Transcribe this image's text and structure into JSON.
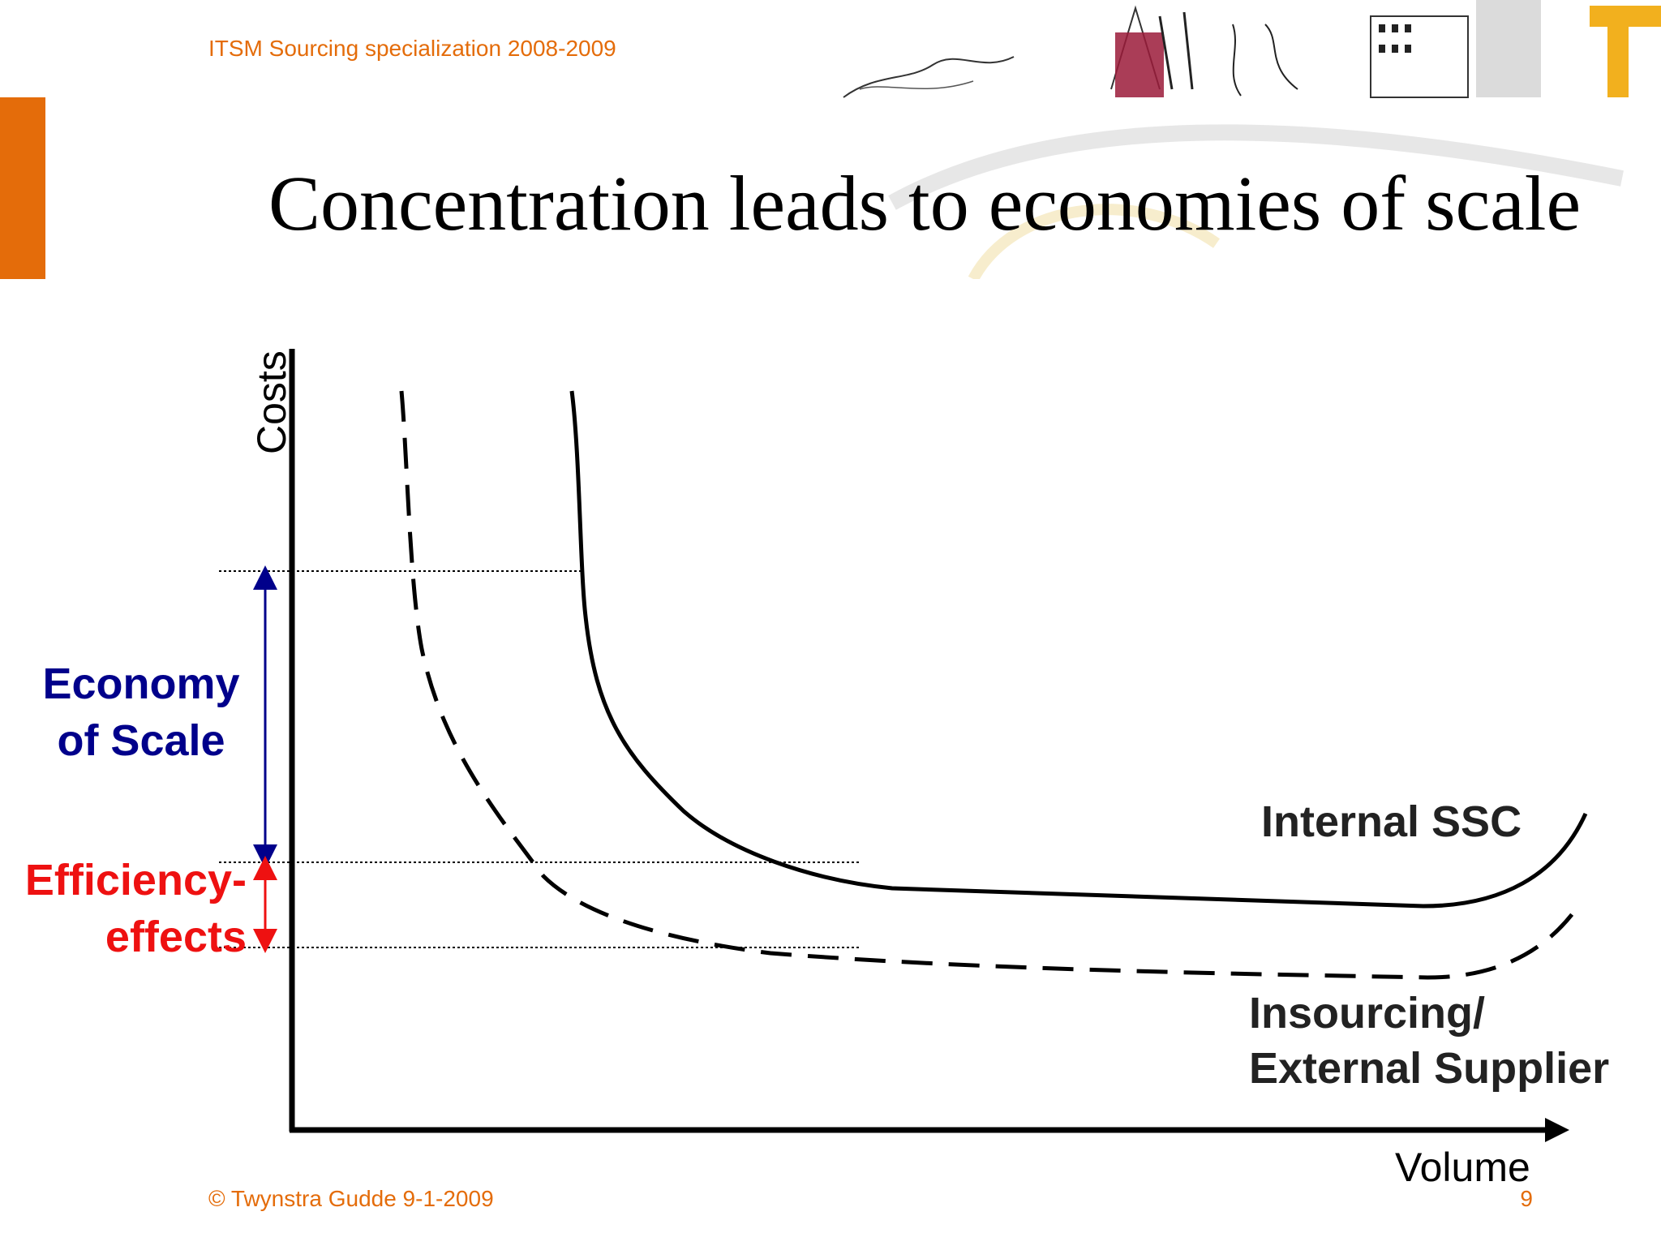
{
  "header": {
    "course": "ITSM Sourcing specialization 2008-2009"
  },
  "slide": {
    "title": "Concentration leads to economies of scale"
  },
  "diagram": {
    "y_axis_label": "Costs",
    "x_axis_label": "Volume",
    "economy_label_line1": "Economy",
    "economy_label_line2": "of Scale",
    "efficiency_label_line1": "Efficiency-",
    "efficiency_label_line2": "effects",
    "curve_internal_label": "Internal SSC",
    "curve_external_label_line1": "Insourcing/",
    "curve_external_label_line2": "External Supplier",
    "colors": {
      "economy": "#00008b",
      "efficiency": "#ee1111",
      "accent": "#e46c0a"
    }
  },
  "footer": {
    "copyright": "© Twynstra Gudde  9-1-2009",
    "page_number": "9"
  }
}
